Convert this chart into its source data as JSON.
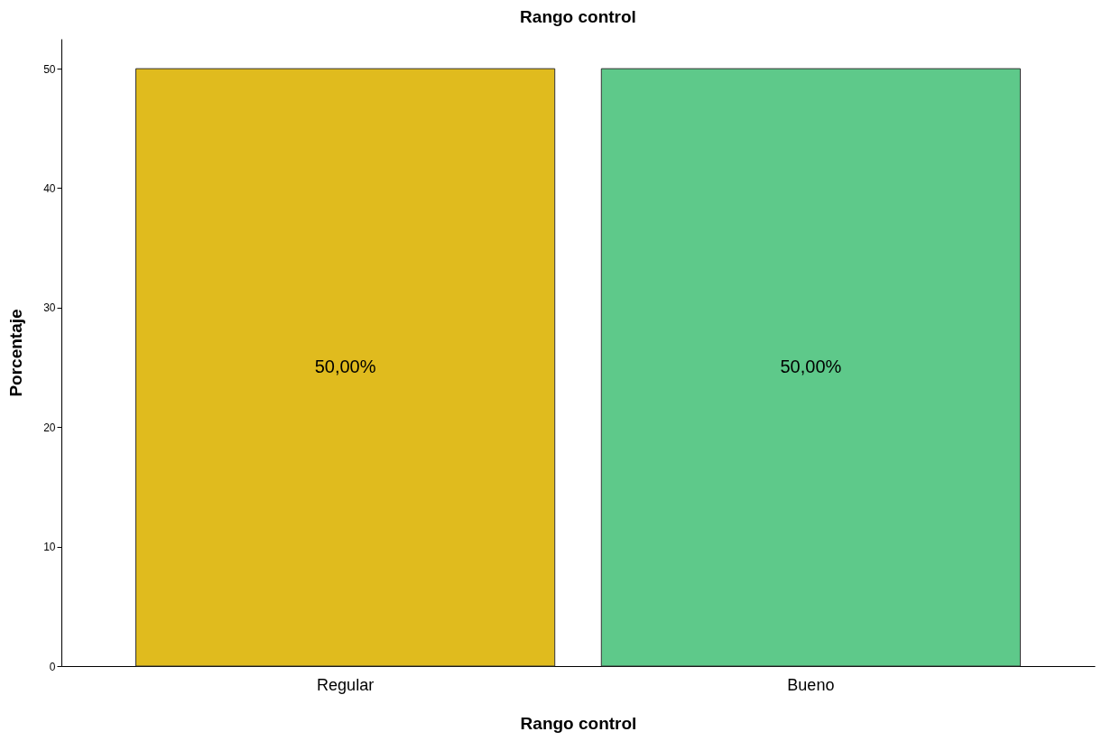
{
  "chart_data": {
    "type": "bar",
    "title": "Rango control",
    "xlabel": "Rango control",
    "ylabel": "Porcentaje",
    "categories": [
      "Regular",
      "Bueno"
    ],
    "values": [
      50,
      50
    ],
    "colors": [
      "#e0bb1e",
      "#5ec98a"
    ],
    "value_labels": [
      "50,00%",
      "50,00%"
    ],
    "ylim": [
      0,
      52.5
    ],
    "yticks": [
      0,
      10,
      20,
      30,
      40,
      50
    ],
    "grid": false
  }
}
